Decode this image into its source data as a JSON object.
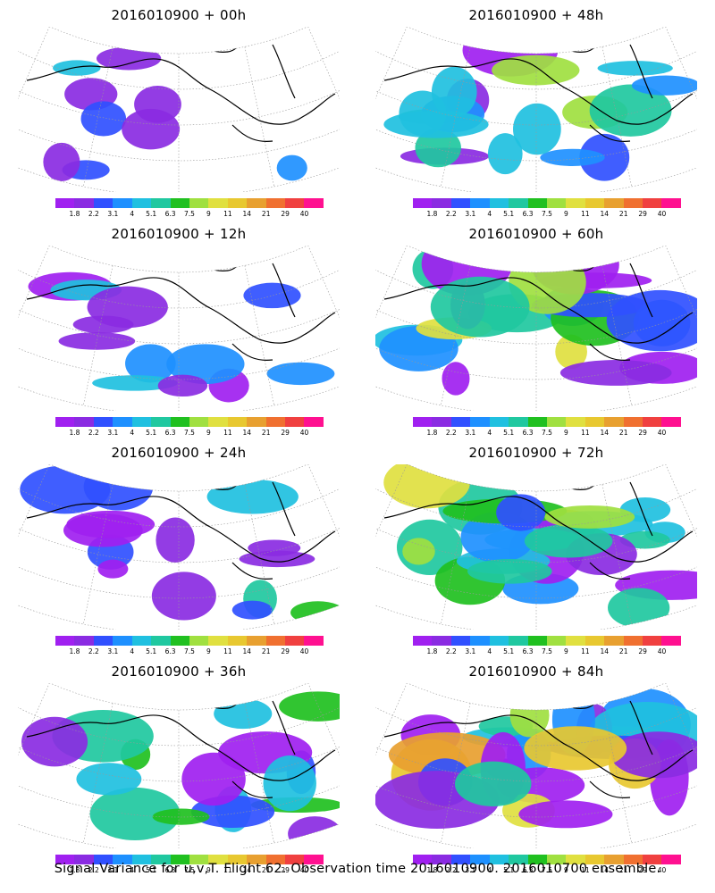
{
  "panels": [
    {
      "title": "2016010900 + 00h",
      "spread": 0.15
    },
    {
      "title": "2016010900 + 48h",
      "spread": 0.55
    },
    {
      "title": "2016010900 + 12h",
      "spread": 0.25
    },
    {
      "title": "2016010900 + 60h",
      "spread": 0.65
    },
    {
      "title": "2016010900 + 24h",
      "spread": 0.35
    },
    {
      "title": "2016010900 + 72h",
      "spread": 0.78
    },
    {
      "title": "2016010900 + 36h",
      "spread": 0.45
    },
    {
      "title": "2016010900 + 84h",
      "spread": 0.9
    }
  ],
  "colorbar": {
    "colors": [
      "#a020f0",
      "#8a2be2",
      "#3050ff",
      "#1e90ff",
      "#20c0e0",
      "#20c8a0",
      "#20c020",
      "#a0e040",
      "#e0e040",
      "#e8c830",
      "#e8a030",
      "#f07030",
      "#f04040",
      "#ff1090"
    ],
    "ticks": [
      "1.8",
      "2.2",
      "3.1",
      "4",
      "5.1",
      "6.3",
      "7.5",
      "9",
      "11",
      "14",
      "21",
      "29",
      "40"
    ]
  },
  "map_colors": {
    "coast": "#000000",
    "grid": "#999999"
  },
  "footer": "Signal Variance for u,v,T. Flight 62. Observation time 2016010900. 2016010700 ensemble."
}
